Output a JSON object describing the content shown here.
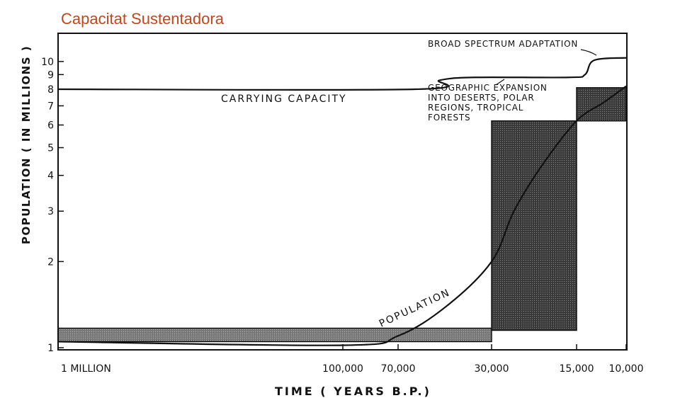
{
  "title": "Capacitat Sustentadora",
  "chart_data": {
    "type": "line",
    "title": "Capacitat Sustentadora",
    "xlabel": "TIME ( YEARS B.P.)",
    "ylabel": "POPULATION ( IN MILLIONS )",
    "x_ticks": [
      "1 MILLION",
      "100,000",
      "70,000",
      "30,000",
      "15,000",
      "10,000"
    ],
    "y_ticks": [
      "1",
      "2",
      "3",
      "4",
      "5",
      "6",
      "7",
      "8",
      "9",
      "10"
    ],
    "y_scale": "log",
    "ylim": [
      1,
      11
    ],
    "series": [
      {
        "name": "CARRYING CAPACITY",
        "points": [
          [
            1000000,
            8
          ],
          [
            60000,
            8
          ],
          [
            48000,
            8.6
          ],
          [
            35000,
            8.8
          ],
          [
            16000,
            8.8
          ],
          [
            14000,
            9
          ],
          [
            13000,
            10.1
          ],
          [
            10000,
            10.3
          ]
        ]
      },
      {
        "name": "POPULATION",
        "points": [
          [
            1000000,
            1.05
          ],
          [
            100000,
            1.02
          ],
          [
            70000,
            1.1
          ],
          [
            45000,
            1.4
          ],
          [
            30000,
            2.0
          ],
          [
            25000,
            3.0
          ],
          [
            20000,
            4.3
          ],
          [
            15000,
            6.2
          ],
          [
            12000,
            7.2
          ],
          [
            10000,
            8.2
          ]
        ]
      }
    ],
    "shaded_blocks": [
      {
        "x_range": [
          1000000,
          30000
        ],
        "y_range": [
          1.05,
          1.17
        ]
      },
      {
        "x_range": [
          30000,
          15000
        ],
        "y_range": [
          1.15,
          6.2
        ]
      },
      {
        "x_range": [
          15000,
          10000
        ],
        "y_range": [
          6.2,
          8.1
        ]
      }
    ],
    "annotations": [
      {
        "key": "broad",
        "lines": [
          "BROAD SPECTRUM ADAPTATION"
        ]
      },
      {
        "key": "geo",
        "lines": [
          "GEOGRAPHIC EXPANSION",
          "INTO DESERTS, POLAR",
          "REGIONS, TROPICAL",
          "FORESTS"
        ]
      },
      {
        "key": "cc",
        "lines": [
          "CARRYING CAPACITY"
        ]
      },
      {
        "key": "pop",
        "lines": [
          "POPULATION"
        ]
      }
    ]
  }
}
